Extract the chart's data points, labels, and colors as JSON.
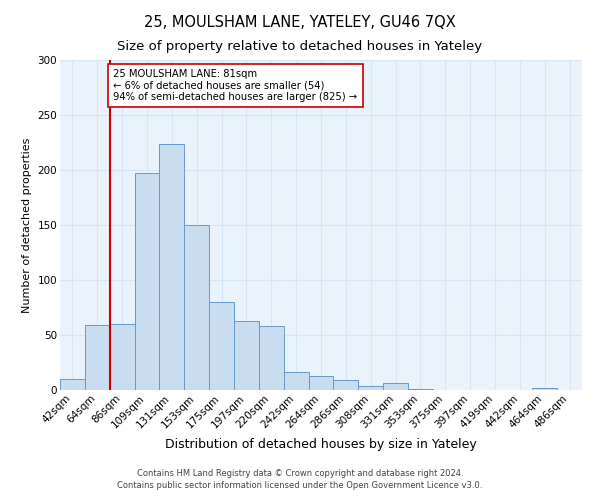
{
  "title": "25, MOULSHAM LANE, YATELEY, GU46 7QX",
  "subtitle": "Size of property relative to detached houses in Yateley",
  "xlabel": "Distribution of detached houses by size in Yateley",
  "ylabel": "Number of detached properties",
  "bar_labels": [
    "42sqm",
    "64sqm",
    "86sqm",
    "109sqm",
    "131sqm",
    "153sqm",
    "175sqm",
    "197sqm",
    "220sqm",
    "242sqm",
    "264sqm",
    "286sqm",
    "308sqm",
    "331sqm",
    "353sqm",
    "375sqm",
    "397sqm",
    "419sqm",
    "442sqm",
    "464sqm",
    "486sqm"
  ],
  "bar_values": [
    10,
    59,
    60,
    197,
    224,
    150,
    80,
    63,
    58,
    16,
    13,
    9,
    4,
    6,
    1,
    0,
    0,
    0,
    0,
    2,
    0
  ],
  "bar_color": "#c9ddf0",
  "bar_edge_color": "#6699cc",
  "annotation_text": "25 MOULSHAM LANE: 81sqm\n← 6% of detached houses are smaller (54)\n94% of semi-detached houses are larger (825) →",
  "annotation_box_color": "white",
  "annotation_box_edge": "#cc0000",
  "property_line_color": "#cc0000",
  "ylim": [
    0,
    300
  ],
  "yticks": [
    0,
    50,
    100,
    150,
    200,
    250,
    300
  ],
  "footer1": "Contains HM Land Registry data © Crown copyright and database right 2024.",
  "footer2": "Contains public sector information licensed under the Open Government Licence v3.0.",
  "title_fontsize": 10.5,
  "subtitle_fontsize": 9.5,
  "xlabel_fontsize": 9,
  "ylabel_fontsize": 8,
  "tick_fontsize": 7.5,
  "footer_fontsize": 6,
  "grid_color": "#d5e5f5",
  "bg_color": "#eaf3fc"
}
